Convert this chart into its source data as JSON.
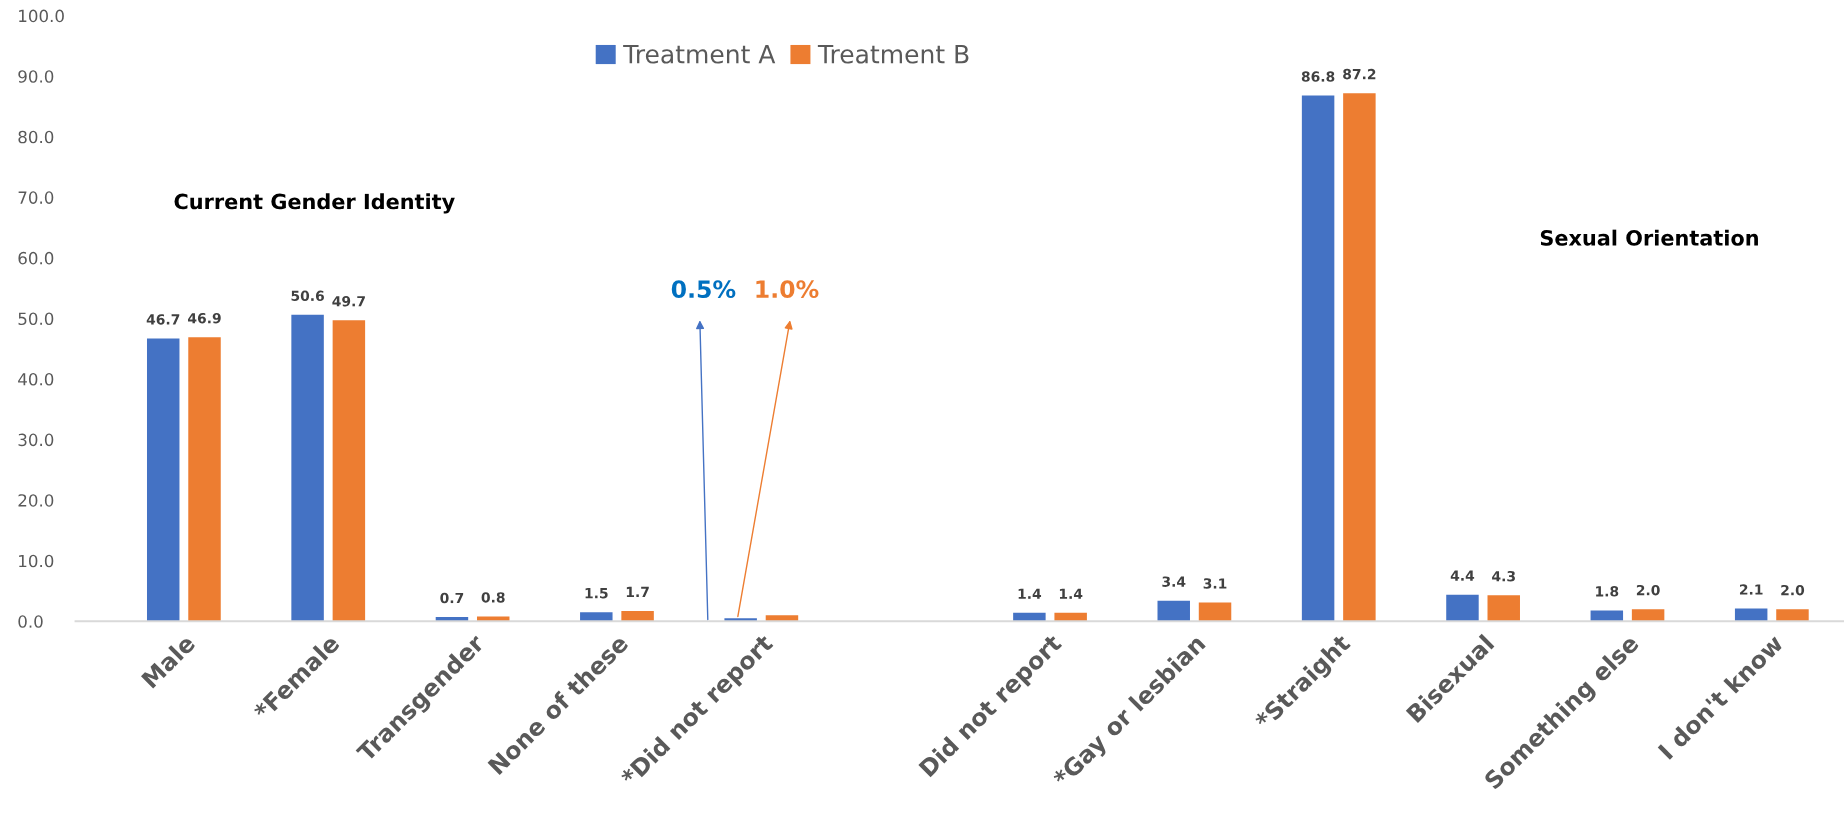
{
  "chart_data": {
    "type": "bar",
    "categories": [
      "Male",
      "*Female",
      "Transgender",
      "None of these",
      "*Did not report",
      null,
      "Did not report",
      "*Gay or lesbian",
      "*Straight",
      "Bisexual",
      "Something else",
      "I don't know"
    ],
    "series": [
      {
        "name": "Treatment A",
        "color": "#4472c4",
        "values": [
          46.7,
          50.6,
          0.7,
          1.5,
          0.5,
          null,
          1.4,
          3.4,
          86.8,
          4.4,
          1.8,
          2.1
        ],
        "value_labels": [
          "46.7",
          "50.6",
          "0.7",
          "1.5",
          null,
          null,
          "1.4",
          "3.4",
          "86.8",
          "4.4",
          "1.8",
          "2.1"
        ]
      },
      {
        "name": "Treatment B",
        "color": "#ed7d31",
        "values": [
          46.9,
          49.7,
          0.8,
          1.7,
          1.0,
          null,
          1.4,
          3.1,
          87.2,
          4.3,
          2.0,
          2.0
        ],
        "value_labels": [
          "46.9",
          "49.7",
          "0.8",
          "1.7",
          null,
          null,
          "1.4",
          "3.1",
          "87.2",
          "4.3",
          "2.0",
          "2.0"
        ]
      }
    ],
    "ylim": [
      0,
      100
    ],
    "yticks": [
      {
        "value": 0,
        "label": "0.0"
      },
      {
        "value": 10,
        "label": "10.0"
      },
      {
        "value": 20,
        "label": "20.0"
      },
      {
        "value": 30,
        "label": "30.0"
      },
      {
        "value": 40,
        "label": "40.0"
      },
      {
        "value": 50,
        "label": "50.0"
      },
      {
        "value": 60,
        "label": "60.0"
      },
      {
        "value": 70,
        "label": "70.0"
      },
      {
        "value": 80,
        "label": "80.0"
      },
      {
        "value": 90,
        "label": "90.0"
      },
      {
        "value": 100,
        "label": "100.0"
      }
    ],
    "annotations": [
      "0.5%",
      "1.0%",
      "Current Gender Identity",
      "Sexual Orientation"
    ],
    "grid": false,
    "legend": "top"
  }
}
